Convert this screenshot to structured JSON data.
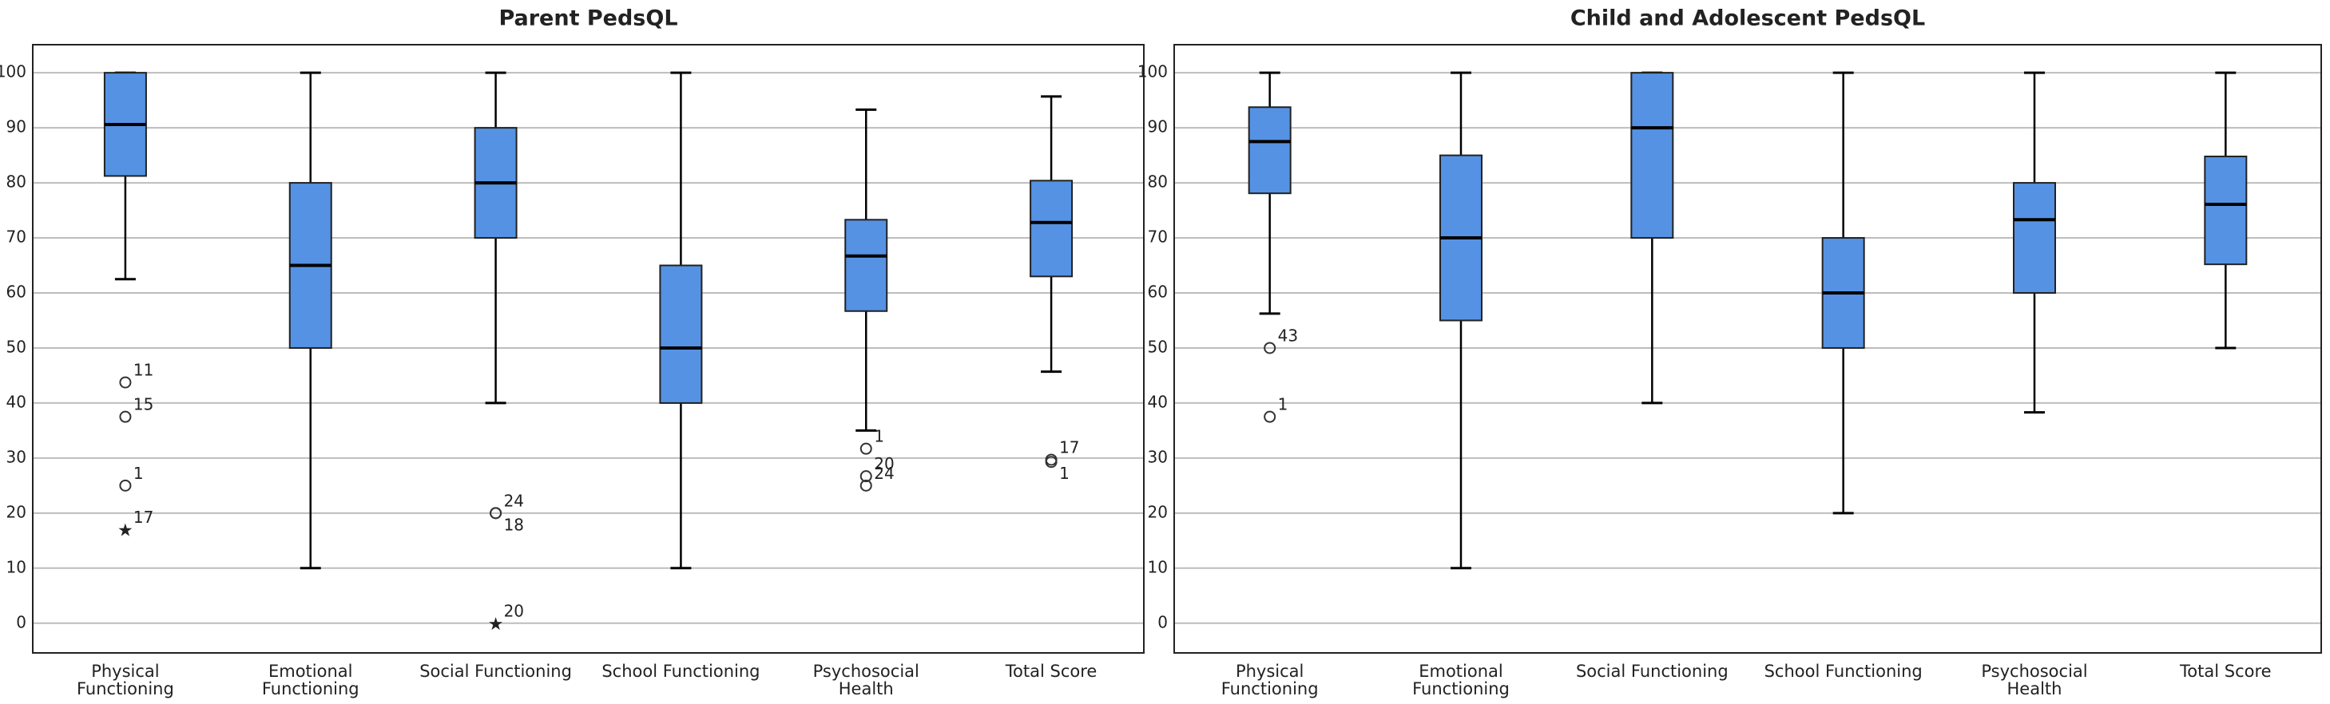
{
  "chart_data": [
    {
      "type": "box",
      "title": "Parent PedsQL",
      "color": "#5592e3",
      "categories": [
        "Physical\nFunctioning",
        "Emotional\nFunctioning",
        "Social Functioning",
        "School Functioning",
        "Psychosocial\nHealth",
        "Total Score"
      ],
      "ylim": [
        -5.4,
        105.1
      ],
      "yticks": [
        0,
        10,
        20,
        30,
        40,
        50,
        60,
        70,
        80,
        90,
        100
      ],
      "grid": true,
      "boxes": [
        {
          "low": 62.5,
          "q1": 81.25,
          "median": 90.6,
          "q3": 100,
          "high": 100,
          "outliers": [
            {
              "value": 43.75,
              "label": "11",
              "marker": "circle"
            },
            {
              "value": 37.5,
              "label": "15",
              "marker": "circle"
            },
            {
              "value": 25,
              "label": "1",
              "marker": "circle"
            },
            {
              "value": 17,
              "label": "17",
              "marker": "star"
            }
          ]
        },
        {
          "low": 10,
          "q1": 50,
          "median": 65,
          "q3": 80,
          "high": 100,
          "outliers": []
        },
        {
          "low": 40,
          "q1": 70,
          "median": 80,
          "q3": 90,
          "high": 100,
          "outliers": [
            {
              "value": 20,
              "label": "24",
              "marker": "circle"
            },
            {
              "value": 20,
              "label": "18",
              "marker": "circle"
            },
            {
              "value": 0,
              "label": "20",
              "marker": "star"
            }
          ]
        },
        {
          "low": 10,
          "q1": 40,
          "median": 50,
          "q3": 65,
          "high": 100,
          "outliers": []
        },
        {
          "low": 35,
          "q1": 56.7,
          "median": 66.7,
          "q3": 73.3,
          "high": 93.3,
          "outliers": [
            {
              "value": 31.7,
              "label": "1",
              "marker": "circle"
            },
            {
              "value": 26.7,
              "label": "20",
              "marker": "circle"
            },
            {
              "value": 25,
              "label": "24",
              "marker": "circle"
            }
          ]
        },
        {
          "low": 45.7,
          "q1": 63,
          "median": 72.8,
          "q3": 80.4,
          "high": 95.7,
          "outliers": [
            {
              "value": 29.7,
              "label": "17",
              "marker": "circle"
            },
            {
              "value": 29.3,
              "label": "1",
              "marker": "circle"
            }
          ]
        }
      ]
    },
    {
      "type": "box",
      "title": "Child and Adolescent PedsQL",
      "color": "#5592e3",
      "categories": [
        "Physical\nFunctioning",
        "Emotional\nFunctioning",
        "Social Functioning",
        "School Functioning",
        "Psychosocial\nHealth",
        "Total Score"
      ],
      "ylim": [
        -5.4,
        105.1
      ],
      "yticks": [
        0,
        10,
        20,
        30,
        40,
        50,
        60,
        70,
        80,
        90,
        100
      ],
      "grid": true,
      "boxes": [
        {
          "low": 56.25,
          "q1": 78.1,
          "median": 87.5,
          "q3": 93.75,
          "high": 100,
          "outliers": [
            {
              "value": 50,
              "label": "43",
              "marker": "circle"
            },
            {
              "value": 37.5,
              "label": "1",
              "marker": "circle"
            }
          ]
        },
        {
          "low": 10,
          "q1": 55,
          "median": 70,
          "q3": 85,
          "high": 100,
          "outliers": []
        },
        {
          "low": 40,
          "q1": 70,
          "median": 90,
          "q3": 100,
          "high": 100,
          "outliers": []
        },
        {
          "low": 20,
          "q1": 50,
          "median": 60,
          "q3": 70,
          "high": 100,
          "outliers": []
        },
        {
          "low": 38.3,
          "q1": 60,
          "median": 73.3,
          "q3": 80,
          "high": 100,
          "outliers": []
        },
        {
          "low": 50,
          "q1": 65.2,
          "median": 76.1,
          "q3": 84.8,
          "high": 100,
          "outliers": []
        }
      ]
    }
  ]
}
